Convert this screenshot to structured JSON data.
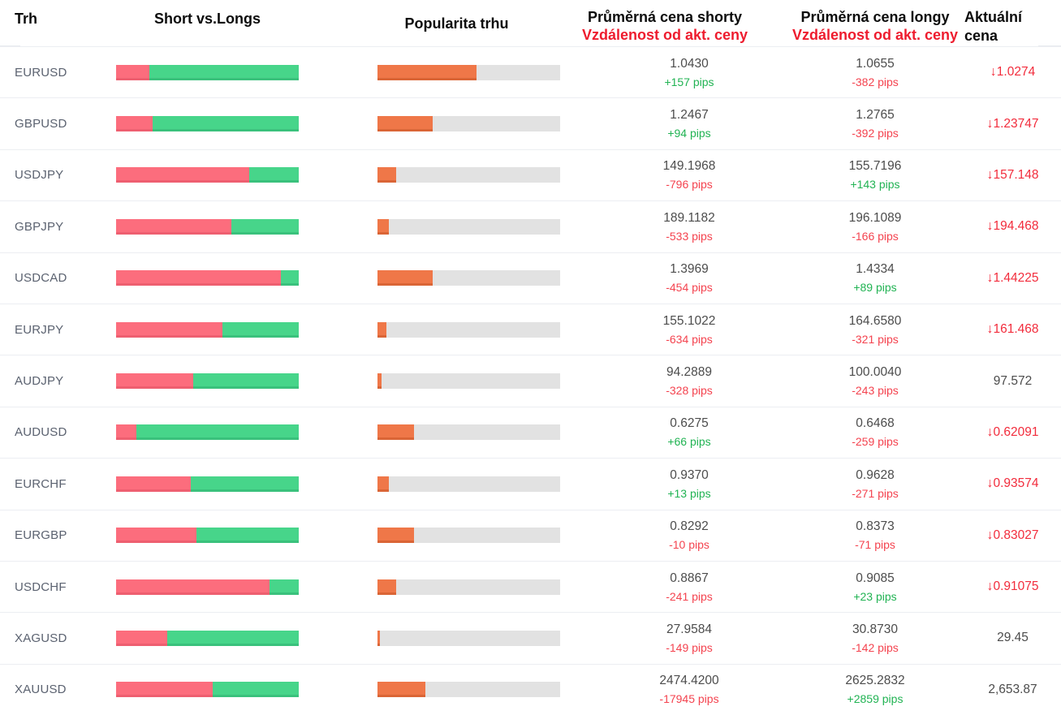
{
  "header": {
    "market": "Trh",
    "short_vs_longs": "Short vs.Longs",
    "popularity": "Popularita trhu",
    "avg_short_title": "Průměrná cena shorty",
    "avg_short_subtitle": "Vzdálenost od akt. ceny",
    "avg_long_title": "Průměrná cena longy",
    "avg_long_subtitle": "Vzdálenost od akt. ceny",
    "current_price": "Aktuální cena"
  },
  "colors": {
    "header_subtitle_red": "#ee1c2e",
    "bar_short_red": "#fc6d7d",
    "bar_long_green": "#47d58a",
    "bar_popularity_orange": "#ef7748",
    "bar_track_gray": "#e2e2e2",
    "pips_positive_green": "#21b353",
    "pips_negative_red": "#f4434f",
    "current_price_down_red": "#f22c3c",
    "market_label_gray": "#5b6270"
  },
  "chart_data": {
    "type": "table",
    "columns": [
      "Trh",
      "Short vs.Longs",
      "Popularita trhu",
      "Průměrná cena shorty / Vzdálenost od akt. ceny",
      "Průměrná cena longy / Vzdálenost od akt. ceny",
      "Aktuální cena"
    ],
    "rows": [
      {
        "market": "EURUSD",
        "shorts_pct": 18,
        "longs_pct": 82,
        "popularity_pct": 54,
        "short": {
          "price": "1.0430",
          "pips": "+157 pips",
          "sign": "pos"
        },
        "long": {
          "price": "1.0655",
          "pips": "-382 pips",
          "sign": "neg"
        },
        "current": {
          "arrow": "↓",
          "value": "1.0274",
          "dir": "down"
        }
      },
      {
        "market": "GBPUSD",
        "shorts_pct": 20,
        "longs_pct": 80,
        "popularity_pct": 30,
        "short": {
          "price": "1.2467",
          "pips": "+94 pips",
          "sign": "pos"
        },
        "long": {
          "price": "1.2765",
          "pips": "-392 pips",
          "sign": "neg"
        },
        "current": {
          "arrow": "↓",
          "value": "1.23747",
          "dir": "down"
        }
      },
      {
        "market": "USDJPY",
        "shorts_pct": 73,
        "longs_pct": 27,
        "popularity_pct": 10,
        "short": {
          "price": "149.1968",
          "pips": "-796 pips",
          "sign": "neg"
        },
        "long": {
          "price": "155.7196",
          "pips": "+143 pips",
          "sign": "pos"
        },
        "current": {
          "arrow": "↓",
          "value": "157.148",
          "dir": "down"
        }
      },
      {
        "market": "GBPJPY",
        "shorts_pct": 63,
        "longs_pct": 37,
        "popularity_pct": 6,
        "short": {
          "price": "189.1182",
          "pips": "-533 pips",
          "sign": "neg"
        },
        "long": {
          "price": "196.1089",
          "pips": "-166 pips",
          "sign": "neg"
        },
        "current": {
          "arrow": "↓",
          "value": "194.468",
          "dir": "down"
        }
      },
      {
        "market": "USDCAD",
        "shorts_pct": 90,
        "longs_pct": 10,
        "popularity_pct": 30,
        "short": {
          "price": "1.3969",
          "pips": "-454 pips",
          "sign": "neg"
        },
        "long": {
          "price": "1.4334",
          "pips": "+89 pips",
          "sign": "pos"
        },
        "current": {
          "arrow": "↓",
          "value": "1.44225",
          "dir": "down"
        }
      },
      {
        "market": "EURJPY",
        "shorts_pct": 58,
        "longs_pct": 42,
        "popularity_pct": 5,
        "short": {
          "price": "155.1022",
          "pips": "-634 pips",
          "sign": "neg"
        },
        "long": {
          "price": "164.6580",
          "pips": "-321 pips",
          "sign": "neg"
        },
        "current": {
          "arrow": "↓",
          "value": "161.468",
          "dir": "down"
        }
      },
      {
        "market": "AUDJPY",
        "shorts_pct": 42,
        "longs_pct": 58,
        "popularity_pct": 2,
        "short": {
          "price": "94.2889",
          "pips": "-328 pips",
          "sign": "neg"
        },
        "long": {
          "price": "100.0040",
          "pips": "-243 pips",
          "sign": "neg"
        },
        "current": {
          "arrow": "",
          "value": "97.572",
          "dir": "flat"
        }
      },
      {
        "market": "AUDUSD",
        "shorts_pct": 11,
        "longs_pct": 89,
        "popularity_pct": 20,
        "short": {
          "price": "0.6275",
          "pips": "+66 pips",
          "sign": "pos"
        },
        "long": {
          "price": "0.6468",
          "pips": "-259 pips",
          "sign": "neg"
        },
        "current": {
          "arrow": "↓",
          "value": "0.62091",
          "dir": "down"
        }
      },
      {
        "market": "EURCHF",
        "shorts_pct": 41,
        "longs_pct": 59,
        "popularity_pct": 6,
        "short": {
          "price": "0.9370",
          "pips": "+13 pips",
          "sign": "pos"
        },
        "long": {
          "price": "0.9628",
          "pips": "-271 pips",
          "sign": "neg"
        },
        "current": {
          "arrow": "↓",
          "value": "0.93574",
          "dir": "down"
        }
      },
      {
        "market": "EURGBP",
        "shorts_pct": 44,
        "longs_pct": 56,
        "popularity_pct": 20,
        "short": {
          "price": "0.8292",
          "pips": "-10 pips",
          "sign": "neg"
        },
        "long": {
          "price": "0.8373",
          "pips": "-71 pips",
          "sign": "neg"
        },
        "current": {
          "arrow": "↓",
          "value": "0.83027",
          "dir": "down"
        }
      },
      {
        "market": "USDCHF",
        "shorts_pct": 84,
        "longs_pct": 16,
        "popularity_pct": 10,
        "short": {
          "price": "0.8867",
          "pips": "-241 pips",
          "sign": "neg"
        },
        "long": {
          "price": "0.9085",
          "pips": "+23 pips",
          "sign": "pos"
        },
        "current": {
          "arrow": "↓",
          "value": "0.91075",
          "dir": "down"
        }
      },
      {
        "market": "XAGUSD",
        "shorts_pct": 28,
        "longs_pct": 72,
        "popularity_pct": 1.5,
        "short": {
          "price": "27.9584",
          "pips": "-149 pips",
          "sign": "neg"
        },
        "long": {
          "price": "30.8730",
          "pips": "-142 pips",
          "sign": "neg"
        },
        "current": {
          "arrow": "",
          "value": "29.45",
          "dir": "flat"
        }
      },
      {
        "market": "XAUUSD",
        "shorts_pct": 53,
        "longs_pct": 47,
        "popularity_pct": 26,
        "short": {
          "price": "2474.4200",
          "pips": "-17945 pips",
          "sign": "neg"
        },
        "long": {
          "price": "2625.2832",
          "pips": "+2859 pips",
          "sign": "pos"
        },
        "current": {
          "arrow": "",
          "value": "2,653.87",
          "dir": "flat"
        }
      }
    ]
  }
}
